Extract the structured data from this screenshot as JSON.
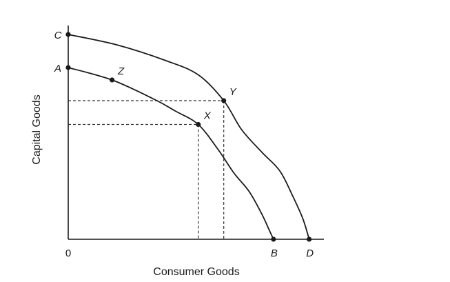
{
  "chart_data": {
    "type": "line",
    "title": "",
    "xlabel": "Consumer Goods",
    "ylabel": "Capital Goods",
    "xlim": [
      0,
      10
    ],
    "ylim": [
      0,
      10
    ],
    "grid": false,
    "origin_label": "0",
    "series": [
      {
        "x": [
          0,
          1.72,
          3.4,
          4.2,
          5.1,
          5.9,
          6.5,
          7.1,
          7.6,
          7.9,
          8.05
        ],
        "y": [
          8.3,
          7.7,
          6.75,
          6.2,
          5.55,
          4.3,
          3.2,
          2.3,
          1.2,
          0.4,
          0.0
        ]
      },
      {
        "x": [
          0,
          1.9,
          3.8,
          5.1,
          6.1,
          6.8,
          7.6,
          8.3,
          8.8,
          9.2,
          9.45
        ],
        "y": [
          9.9,
          9.4,
          8.65,
          7.95,
          6.7,
          5.3,
          4.2,
          3.3,
          2.1,
          1.0,
          0.0
        ]
      }
    ],
    "points": [
      {
        "label": "C",
        "x": 0,
        "y": 9.9,
        "label_pos": "left"
      },
      {
        "label": "A",
        "x": 0,
        "y": 8.3,
        "label_pos": "left"
      },
      {
        "label": "Z",
        "x": 1.72,
        "y": 7.7,
        "label_pos": "above-right"
      },
      {
        "label": "X",
        "x": 5.1,
        "y": 5.55,
        "label_pos": "above-right"
      },
      {
        "label": "Y",
        "x": 6.1,
        "y": 6.7,
        "label_pos": "above-right"
      },
      {
        "label": "B",
        "x": 8.05,
        "y": 0,
        "label_pos": "below"
      },
      {
        "label": "D",
        "x": 9.45,
        "y": 0,
        "label_pos": "below"
      }
    ],
    "guides": [
      {
        "through": "X"
      },
      {
        "through": "Y"
      }
    ]
  },
  "colors": {
    "ink": "#1a1a1a",
    "background": "#ffffff"
  }
}
